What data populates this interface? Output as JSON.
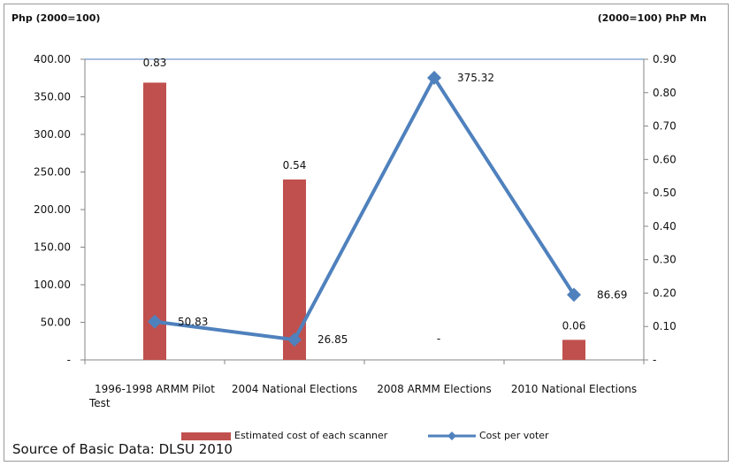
{
  "chart_data": {
    "type": "bar",
    "y_left_title": "Php (2000=100)",
    "y_right_title": "(2000=100) PhP Mn",
    "categories": [
      "1996-1998 ARMM Pilot Test",
      "2004 National Elections",
      "2008 ARMM Elections",
      "2010 National Elections"
    ],
    "category_label_lines": [
      [
        "1996-1998 ARMM Pilot",
        "Test"
      ],
      [
        "2004 National Elections"
      ],
      [
        "2008 ARMM Elections"
      ],
      [
        "2010 National Elections"
      ]
    ],
    "y_left": {
      "min": 0,
      "max": 400,
      "ticks": [
        "-",
        "50.00",
        "100.00",
        "150.00",
        "200.00",
        "250.00",
        "300.00",
        "350.00",
        "400.00"
      ]
    },
    "y_right": {
      "min": 0,
      "max": 0.9,
      "ticks": [
        "-",
        "0.10",
        "0.20",
        "0.30",
        "0.40",
        "0.50",
        "0.60",
        "0.70",
        "0.80",
        "0.90"
      ]
    },
    "series": [
      {
        "name": "Estimated cost of each scanner",
        "type": "bar",
        "axis": "right",
        "color": "#c0504d",
        "values": [
          0.83,
          0.54,
          0,
          0.06
        ],
        "labels": [
          "0.83",
          "0.54",
          "-",
          "0.06"
        ]
      },
      {
        "name": "Cost per voter",
        "type": "line",
        "axis": "left",
        "color": "#4f81bd",
        "marker": "diamond",
        "values": [
          50.83,
          26.85,
          375.32,
          86.69
        ],
        "labels": [
          "50.83",
          "26.85",
          "375.32",
          "86.69"
        ]
      }
    ],
    "grid": false,
    "legend_position": "bottom"
  },
  "source_note": "Source of Basic Data: DLSU 2010"
}
